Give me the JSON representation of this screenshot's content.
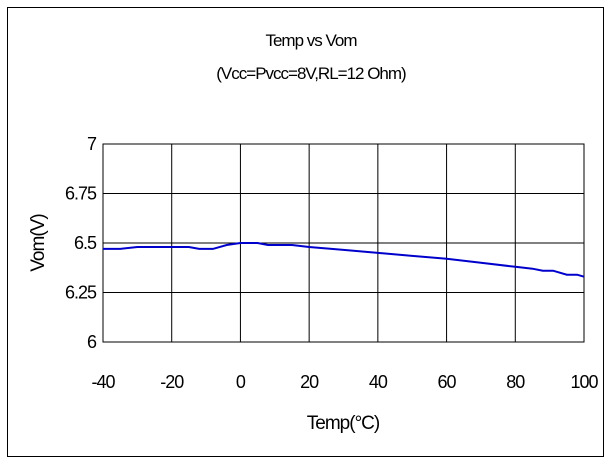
{
  "chart_data": {
    "type": "line",
    "title": "Temp vs Vom",
    "subtitle": "(Vcc=Pvcc=8V,RL=12 Ohm)",
    "xlabel": "Temp(°C)",
    "ylabel": "Vom(V)",
    "xlim": [
      -40,
      100
    ],
    "ylim": [
      6,
      7
    ],
    "x_ticks": [
      "-40",
      "-20",
      "0",
      "20",
      "40",
      "60",
      "80",
      "100"
    ],
    "y_ticks": [
      "6",
      "6.25",
      "6.5",
      "6.75",
      "7"
    ],
    "grid": true,
    "legend": "none",
    "line_color": "#0000cc",
    "series": [
      {
        "x": [
          -40,
          -35,
          -30,
          -25,
          -20,
          -15,
          -12,
          -8,
          -4,
          0,
          5,
          8,
          15,
          20,
          30,
          40,
          50,
          60,
          70,
          80,
          85,
          88,
          91,
          95,
          98,
          100
        ],
        "y": [
          6.47,
          6.47,
          6.48,
          6.48,
          6.48,
          6.48,
          6.47,
          6.47,
          6.49,
          6.5,
          6.5,
          6.49,
          6.49,
          6.48,
          6.465,
          6.45,
          6.435,
          6.42,
          6.4,
          6.38,
          6.37,
          6.36,
          6.36,
          6.34,
          6.34,
          6.33
        ]
      }
    ]
  }
}
